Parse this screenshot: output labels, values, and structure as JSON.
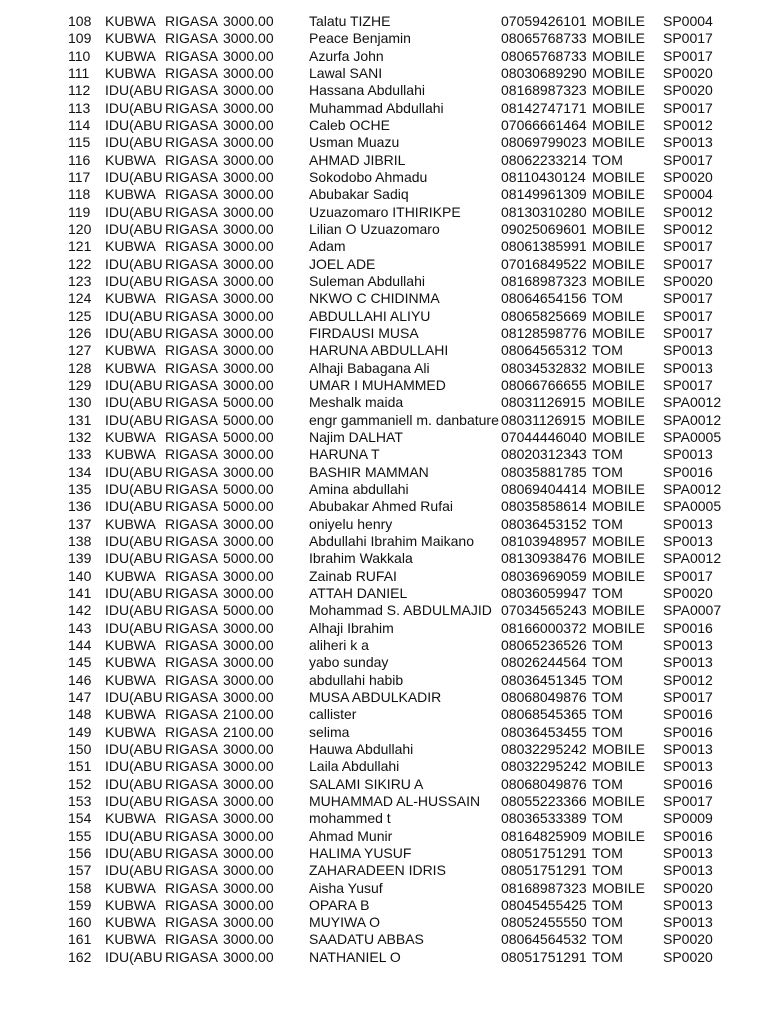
{
  "rows": [
    [
      "108",
      "KUBWA",
      "RIGASA",
      "3000.00",
      "Talatu  TIZHE",
      "07059426101",
      "MOBILE",
      "SP0004"
    ],
    [
      "109",
      "KUBWA",
      "RIGASA",
      "3000.00",
      "Peace Benjamin",
      "08065768733",
      "MOBILE",
      "SP0017"
    ],
    [
      "110",
      "KUBWA",
      "RIGASA",
      "3000.00",
      "Azurfa John",
      "08065768733",
      "MOBILE",
      "SP0017"
    ],
    [
      "111",
      "KUBWA",
      "RIGASA",
      "3000.00",
      "Lawal SANI",
      "08030689290",
      "MOBILE",
      "SP0020"
    ],
    [
      "112",
      "IDU(ABU",
      "RIGASA",
      "3000.00",
      " Hassana Abdullahi",
      "08168987323",
      "MOBILE",
      "SP0020"
    ],
    [
      "113",
      "IDU(ABU",
      "RIGASA",
      "3000.00",
      "Muhammad Abdullahi",
      "08142747171",
      "MOBILE",
      "SP0017"
    ],
    [
      "114",
      "IDU(ABU",
      "RIGASA",
      "3000.00",
      "Caleb OCHE",
      "07066661464",
      "MOBILE",
      "SP0012"
    ],
    [
      "115",
      "IDU(ABU",
      "RIGASA",
      "3000.00",
      "Usman Muazu",
      "08069799023",
      "MOBILE",
      "SP0013"
    ],
    [
      "116",
      "KUBWA",
      "RIGASA",
      "3000.00",
      "AHMAD JIBRIL",
      "08062233214",
      "TOM",
      "SP0017"
    ],
    [
      "117",
      "IDU(ABU",
      "RIGASA",
      "3000.00",
      "Sokodobo Ahmadu",
      "08110430124",
      "MOBILE",
      "SP0020"
    ],
    [
      "118",
      "KUBWA",
      "RIGASA",
      "3000.00",
      "Abubakar Sadiq",
      "08149961309",
      "MOBILE",
      "SP0004"
    ],
    [
      "119",
      "IDU(ABU",
      "RIGASA",
      "3000.00",
      "Uzuazomaro ITHIRIKPE",
      "08130310280",
      "MOBILE",
      "SP0012"
    ],
    [
      "120",
      "IDU(ABU",
      "RIGASA",
      "3000.00",
      "Lilian O Uzuazomaro",
      "09025069601",
      "MOBILE",
      "SP0012"
    ],
    [
      "121",
      "KUBWA",
      "RIGASA",
      "3000.00",
      "Adam",
      "08061385991",
      "MOBILE",
      "SP0017"
    ],
    [
      "122",
      "IDU(ABU",
      "RIGASA",
      "3000.00",
      "JOEL ADE",
      "07016849522",
      "MOBILE",
      "SP0017"
    ],
    [
      "123",
      "IDU(ABU",
      "RIGASA",
      "3000.00",
      "Suleman Abdullahi",
      "08168987323",
      "MOBILE",
      "SP0020"
    ],
    [
      "124",
      "KUBWA",
      "RIGASA",
      "3000.00",
      "NKWO  C CHIDINMA",
      "08064654156",
      "TOM",
      "SP0017"
    ],
    [
      "125",
      "IDU(ABU",
      "RIGASA",
      "3000.00",
      "ABDULLAHI ALIYU",
      "08065825669",
      "MOBILE",
      "SP0017"
    ],
    [
      "126",
      "IDU(ABU",
      "RIGASA",
      "3000.00",
      "FIRDAUSI MUSA",
      "08128598776",
      "MOBILE",
      "SP0017"
    ],
    [
      "127",
      "KUBWA",
      "RIGASA",
      "3000.00",
      "HARUNA ABDULLAHI",
      "08064565312",
      "TOM",
      "SP0013"
    ],
    [
      "128",
      "KUBWA",
      "RIGASA",
      "3000.00",
      "Alhaji Babagana Ali",
      "08034532832",
      "MOBILE",
      "SP0013"
    ],
    [
      "129",
      "IDU(ABU",
      "RIGASA",
      "3000.00",
      "UMAR I MUHAMMED",
      "08066766655",
      "MOBILE",
      "SP0017"
    ],
    [
      "130",
      "IDU(ABU",
      "RIGASA",
      "5000.00",
      "Meshalk maida",
      "08031126915",
      "MOBILE",
      "SPA0012"
    ],
    [
      "131",
      "IDU(ABU",
      "RIGASA",
      "5000.00",
      "engr gammaniell m. danbature",
      "08031126915",
      "MOBILE",
      "SPA0012"
    ],
    [
      "132",
      "KUBWA",
      "RIGASA",
      "5000.00",
      "Najim DALHAT",
      "07044446040",
      "MOBILE",
      "SPA0005"
    ],
    [
      "133",
      "KUBWA",
      "RIGASA",
      "3000.00",
      "HARUNA T",
      "08020312343",
      "TOM",
      "SP0013"
    ],
    [
      "134",
      "IDU(ABU",
      "RIGASA",
      "3000.00",
      "BASHIR MAMMAN",
      "08035881785",
      "TOM",
      "SP0016"
    ],
    [
      "135",
      "IDU(ABU",
      "RIGASA",
      "5000.00",
      "Amina abdullahi",
      "08069404414",
      "MOBILE",
      "SPA0012"
    ],
    [
      "136",
      "IDU(ABU",
      "RIGASA",
      "5000.00",
      "Abubakar Ahmed Rufai",
      "08035858614",
      "MOBILE",
      "SPA0005"
    ],
    [
      "137",
      "KUBWA",
      "RIGASA",
      "3000.00",
      "oniyelu henry",
      "08036453152",
      "TOM",
      "SP0013"
    ],
    [
      "138",
      "IDU(ABU",
      "RIGASA",
      "3000.00",
      "Abdullahi Ibrahim Maikano",
      "08103948957",
      "MOBILE",
      "SP0013"
    ],
    [
      "139",
      "IDU(ABU",
      "RIGASA",
      "5000.00",
      "Ibrahim Wakkala",
      "08130938476",
      "MOBILE",
      "SPA0012"
    ],
    [
      "140",
      "KUBWA",
      "RIGASA",
      "3000.00",
      "Zainab RUFAI",
      "08036969059",
      "MOBILE",
      "SP0017"
    ],
    [
      "141",
      "IDU(ABU",
      "RIGASA",
      "3000.00",
      "ATTAH DANIEL",
      "08036059947",
      "TOM",
      "SP0020"
    ],
    [
      "142",
      "IDU(ABU",
      "RIGASA",
      "5000.00",
      "Mohammad S. ABDULMAJID",
      "07034565243",
      "MOBILE",
      "SPA0007"
    ],
    [
      "143",
      "IDU(ABU",
      "RIGASA",
      "3000.00",
      "Alhaji Ibrahim",
      "08166000372",
      "MOBILE",
      "SP0016"
    ],
    [
      "144",
      "KUBWA",
      "RIGASA",
      "3000.00",
      "aliheri k a",
      "08065236526",
      "TOM",
      "SP0013"
    ],
    [
      "145",
      "KUBWA",
      "RIGASA",
      "3000.00",
      "yabo sunday",
      "08026244564",
      "TOM",
      "SP0013"
    ],
    [
      "146",
      "KUBWA",
      "RIGASA",
      "3000.00",
      "abdullahi habib",
      "08036451345",
      "TOM",
      "SP0012"
    ],
    [
      "147",
      "IDU(ABU",
      "RIGASA",
      "3000.00",
      "MUSA ABDULKADIR",
      "08068049876",
      "TOM",
      "SP0017"
    ],
    [
      "148",
      "KUBWA",
      "RIGASA",
      "2100.00",
      "callister",
      "08068545365",
      "TOM",
      "SP0016"
    ],
    [
      "149",
      "KUBWA",
      "RIGASA",
      "2100.00",
      "selima",
      "08036453455",
      "TOM",
      "SP0016"
    ],
    [
      "150",
      "IDU(ABU",
      "RIGASA",
      "3000.00",
      "Hauwa Abdullahi",
      "08032295242",
      "MOBILE",
      "SP0013"
    ],
    [
      "151",
      "IDU(ABU",
      "RIGASA",
      "3000.00",
      "Laila Abdullahi",
      "08032295242",
      "MOBILE",
      "SP0013"
    ],
    [
      "152",
      "IDU(ABU",
      "RIGASA",
      "3000.00",
      "SALAMI SIKIRU A",
      "08068049876",
      "TOM",
      "SP0016"
    ],
    [
      "153",
      "IDU(ABU",
      "RIGASA",
      "3000.00",
      "MUHAMMAD AL-HUSSAIN",
      "08055223366",
      "MOBILE",
      "SP0017"
    ],
    [
      "154",
      "KUBWA",
      "RIGASA",
      "3000.00",
      "mohammed t",
      "08036533389",
      "TOM",
      "SP0009"
    ],
    [
      "155",
      "IDU(ABU",
      "RIGASA",
      "3000.00",
      "Ahmad Munir",
      "08164825909",
      "MOBILE",
      "SP0016"
    ],
    [
      "156",
      "IDU(ABU",
      "RIGASA",
      "3000.00",
      "HALIMA YUSUF",
      "08051751291",
      "TOM",
      "SP0013"
    ],
    [
      "157",
      "IDU(ABU",
      "RIGASA",
      "3000.00",
      "ZAHARADEEN IDRIS",
      "08051751291",
      "TOM",
      "SP0013"
    ],
    [
      "158",
      "KUBWA",
      "RIGASA",
      "3000.00",
      "Aisha Yusuf",
      "08168987323",
      "MOBILE",
      "SP0020"
    ],
    [
      "159",
      "KUBWA",
      "RIGASA",
      "3000.00",
      "OPARA B",
      "08045455425",
      "TOM",
      "SP0013"
    ],
    [
      "160",
      "KUBWA",
      "RIGASA",
      "3000.00",
      "MUYIWA O",
      "08052455550",
      "TOM",
      "SP0013"
    ],
    [
      "161",
      "KUBWA",
      "RIGASA",
      "3000.00",
      "SAADATU ABBAS",
      "08064564532",
      "TOM",
      "SP0020"
    ],
    [
      "162",
      "IDU(ABU",
      "RIGASA",
      "3000.00",
      "NATHANIEL O",
      "08051751291",
      "TOM",
      "SP0020"
    ]
  ]
}
